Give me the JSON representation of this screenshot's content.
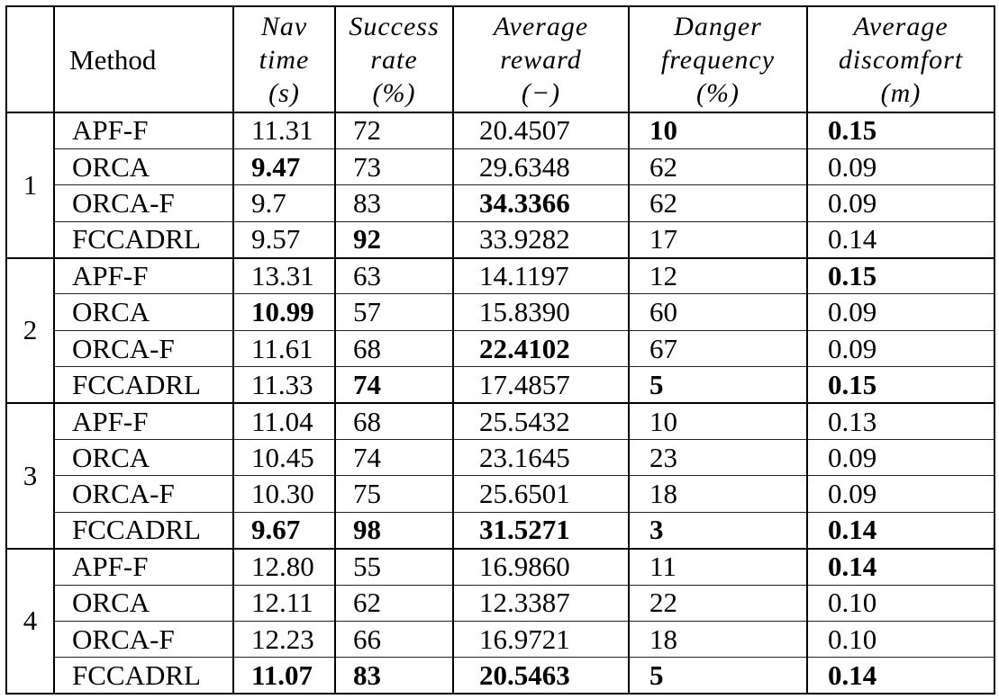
{
  "table": {
    "headers": {
      "corner": "",
      "method": "Method",
      "nav": {
        "l1": "Nav",
        "l2": "time",
        "l3": "(s)"
      },
      "success": {
        "l1": "Success",
        "l2": "rate",
        "l3": "(%)"
      },
      "reward": {
        "l1": "Average",
        "l2": "reward",
        "l3": "(−)"
      },
      "danger": {
        "l1": "Danger",
        "l2": "frequency",
        "l3": "(%)"
      },
      "discomfort": {
        "l1": "Average",
        "l2": "discomfort",
        "l3": "(m)"
      }
    },
    "groups": [
      {
        "id": "1",
        "rows": [
          {
            "method": "APF-F",
            "nav": "11.31",
            "success": "72",
            "reward": "20.4507",
            "danger": "10",
            "discomfort": "0.15"
          },
          {
            "method": "ORCA",
            "nav": "9.47",
            "success": "73",
            "reward": "29.6348",
            "danger": "62",
            "discomfort": "0.09"
          },
          {
            "method": "ORCA-F",
            "nav": "9.7",
            "success": "83",
            "reward": "34.3366",
            "danger": "62",
            "discomfort": "0.09"
          },
          {
            "method": "FCCADRL",
            "nav": "9.57",
            "success": "92",
            "reward": "33.9282",
            "danger": "17",
            "discomfort": "0.14"
          }
        ]
      },
      {
        "id": "2",
        "rows": [
          {
            "method": "APF-F",
            "nav": "13.31",
            "success": "63",
            "reward": "14.1197",
            "danger": "12",
            "discomfort": "0.15"
          },
          {
            "method": "ORCA",
            "nav": "10.99",
            "success": "57",
            "reward": "15.8390",
            "danger": "60",
            "discomfort": "0.09"
          },
          {
            "method": "ORCA-F",
            "nav": "11.61",
            "success": "68",
            "reward": "22.4102",
            "danger": "67",
            "discomfort": "0.09"
          },
          {
            "method": "FCCADRL",
            "nav": "11.33",
            "success": "74",
            "reward": "17.4857",
            "danger": "5",
            "discomfort": "0.15"
          }
        ]
      },
      {
        "id": "3",
        "rows": [
          {
            "method": "APF-F",
            "nav": "11.04",
            "success": "68",
            "reward": "25.5432",
            "danger": "10",
            "discomfort": "0.13"
          },
          {
            "method": "ORCA",
            "nav": "10.45",
            "success": "74",
            "reward": "23.1645",
            "danger": "23",
            "discomfort": "0.09"
          },
          {
            "method": "ORCA-F",
            "nav": "10.30",
            "success": "75",
            "reward": "25.6501",
            "danger": "18",
            "discomfort": "0.09"
          },
          {
            "method": "FCCADRL",
            "nav": "9.67",
            "success": "98",
            "reward": "31.5271",
            "danger": "3",
            "discomfort": "0.14"
          }
        ]
      },
      {
        "id": "4",
        "rows": [
          {
            "method": "APF-F",
            "nav": "12.80",
            "success": "55",
            "reward": "16.9860",
            "danger": "11",
            "discomfort": "0.14"
          },
          {
            "method": "ORCA",
            "nav": "12.11",
            "success": "62",
            "reward": "12.3387",
            "danger": "22",
            "discomfort": "0.10"
          },
          {
            "method": "ORCA-F",
            "nav": "12.23",
            "success": "66",
            "reward": "16.9721",
            "danger": "18",
            "discomfort": "0.10"
          },
          {
            "method": "FCCADRL",
            "nav": "11.07",
            "success": "83",
            "reward": "20.5463",
            "danger": "5",
            "discomfort": "0.14"
          }
        ]
      }
    ],
    "bold_cells": [
      "0.0.danger",
      "0.0.discomfort",
      "0.1.nav",
      "0.2.reward",
      "0.3.success",
      "1.0.discomfort",
      "1.1.nav",
      "1.2.reward",
      "1.3.success",
      "1.3.danger",
      "1.3.discomfort",
      "2.3.nav",
      "2.3.success",
      "2.3.reward",
      "2.3.danger",
      "2.3.discomfort",
      "3.0.discomfort",
      "3.3.nav",
      "3.3.success",
      "3.3.reward",
      "3.3.danger",
      "3.3.discomfort"
    ]
  }
}
